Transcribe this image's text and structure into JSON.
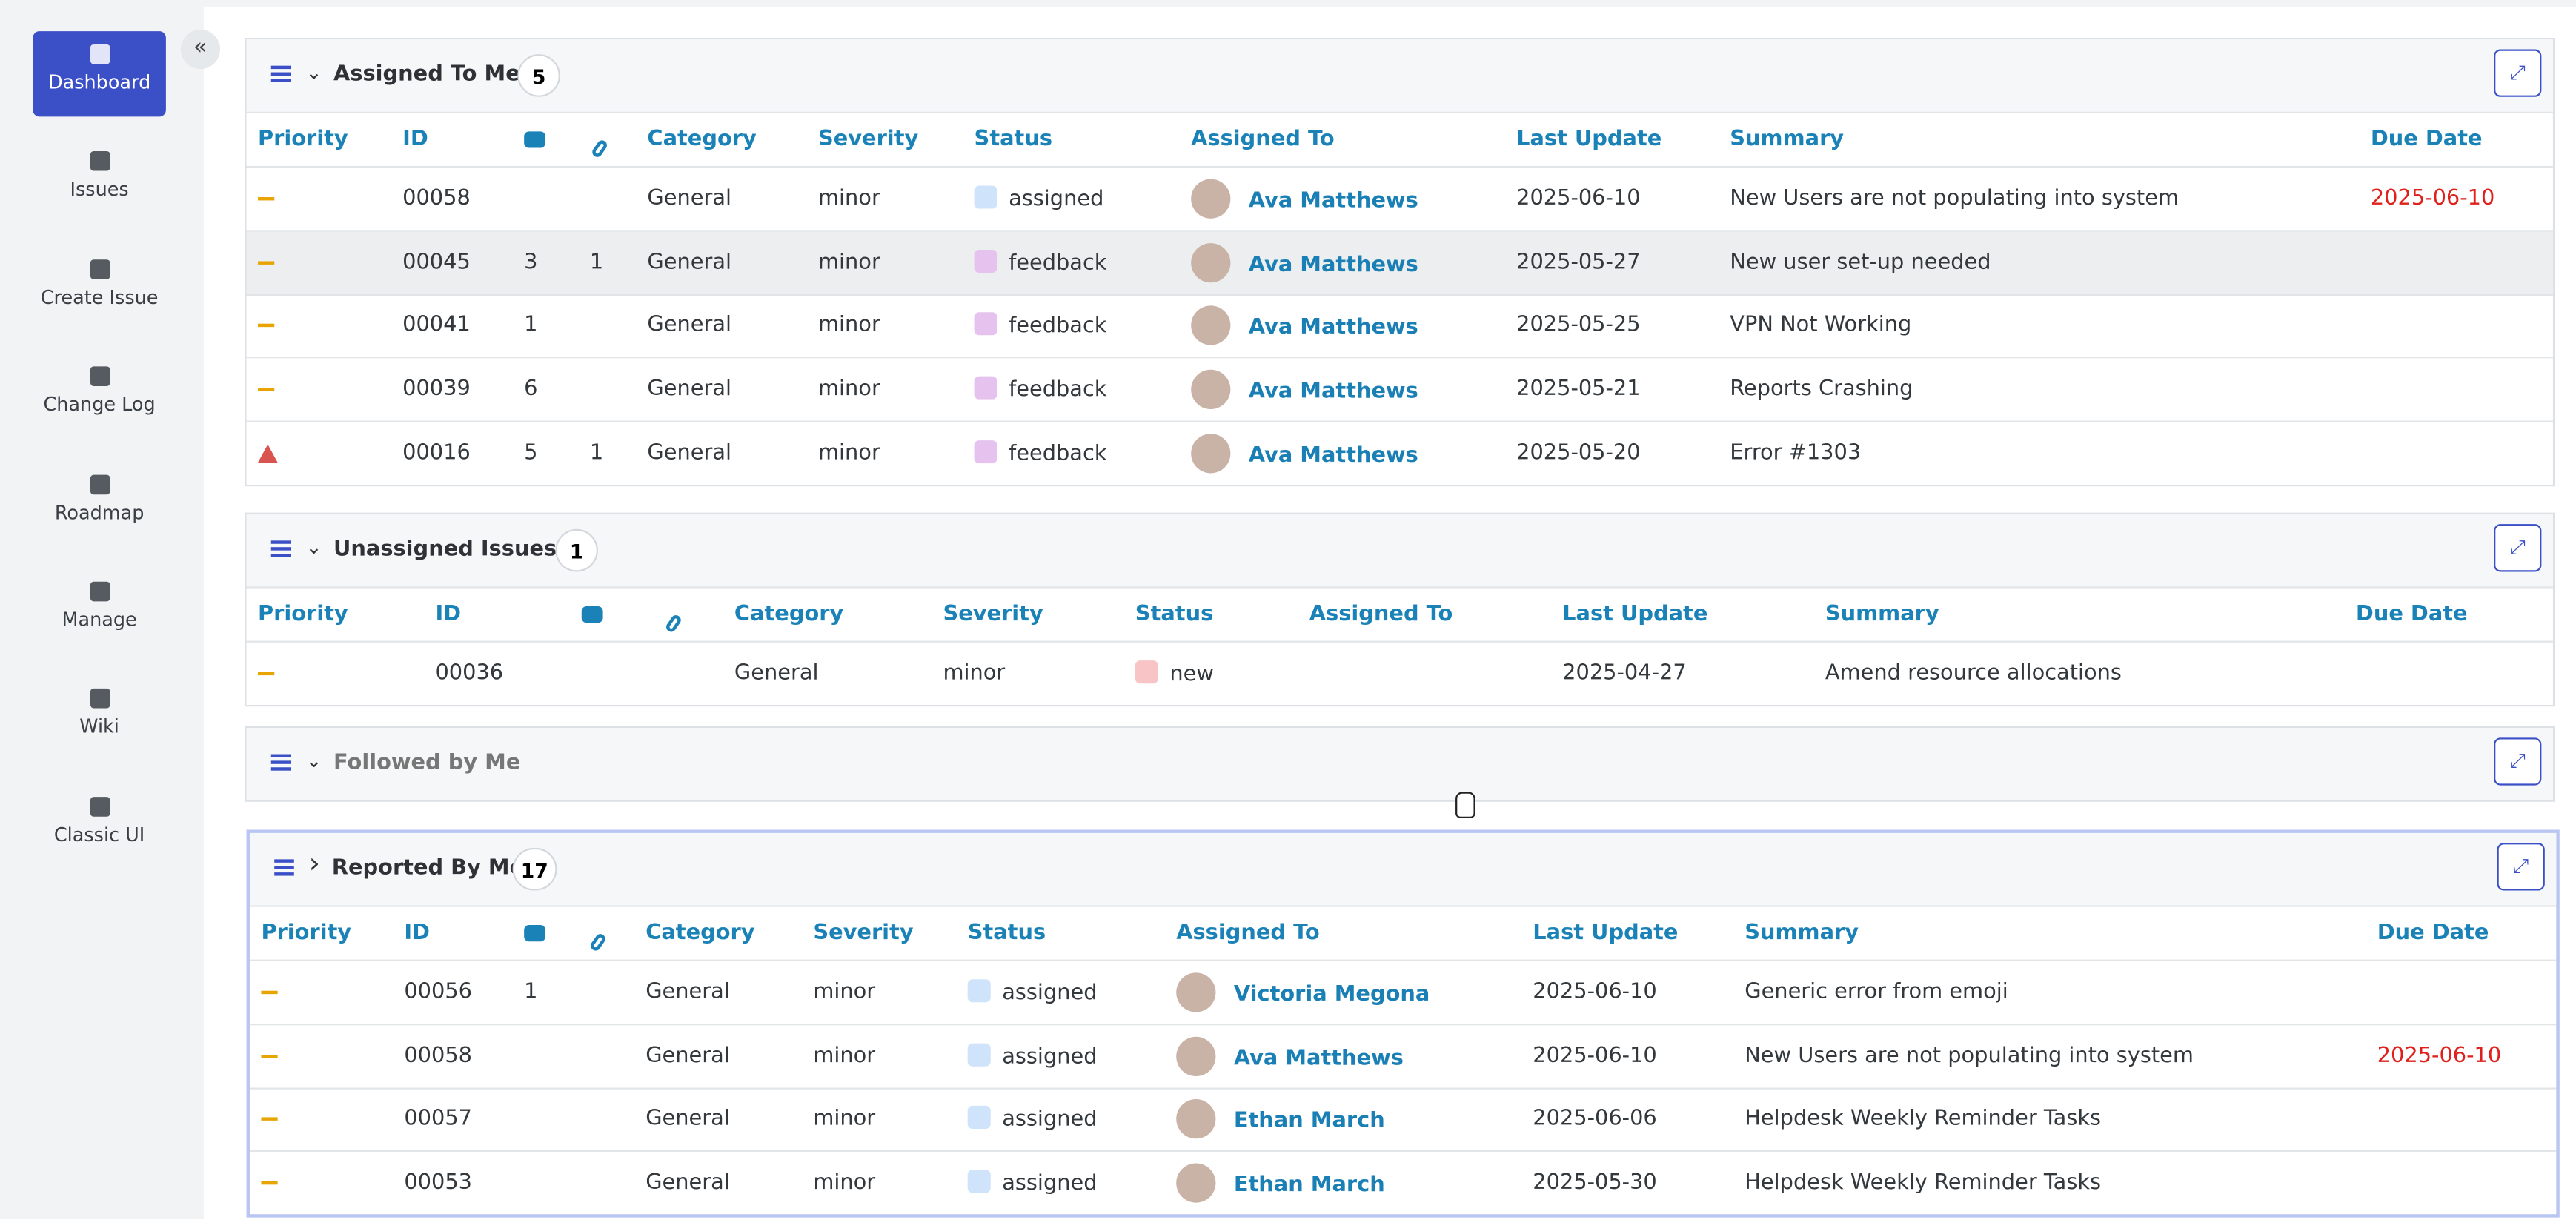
{
  "sidebar": [
    {
      "label": "Dashboard",
      "active": true
    },
    {
      "label": "Issues"
    },
    {
      "label": "Create Issue"
    },
    {
      "label": "Change Log"
    },
    {
      "label": "Roadmap"
    },
    {
      "label": "Manage"
    },
    {
      "label": "Wiki"
    },
    {
      "label": "Classic UI"
    }
  ],
  "sections": [
    {
      "title": "Assigned To Me",
      "count": 5,
      "expanded": true,
      "columns": [
        "Priority",
        "ID",
        "Category",
        "Severity",
        "Status",
        "Assigned To",
        "Last Update",
        "Summary",
        "Due Date"
      ],
      "rows": [
        {
          "id": "00058",
          "category": "General",
          "severity": "minor",
          "status": "assigned",
          "status_color": "#cfe3fb",
          "assigned": "Ava Matthews",
          "updated": "2025-06-10",
          "summary": "New Users are not populating into system",
          "due": "2025-06-10"
        },
        {
          "id": "00045",
          "notes": 3,
          "files": 1,
          "category": "General",
          "severity": "minor",
          "status": "feedback",
          "status_color": "#e6c3ee",
          "assigned": "Ava Matthews",
          "updated": "2025-05-27",
          "summary": "New user set-up needed",
          "highlight": true
        },
        {
          "id": "00041",
          "notes": 1,
          "category": "General",
          "severity": "minor",
          "status": "feedback",
          "status_color": "#e6c3ee",
          "assigned": "Ava Matthews",
          "updated": "2025-05-25",
          "summary": "VPN Not Working"
        },
        {
          "id": "00039",
          "notes": 6,
          "category": "General",
          "severity": "minor",
          "status": "feedback",
          "status_color": "#e6c3ee",
          "assigned": "Ava Matthews",
          "updated": "2025-05-21",
          "summary": "Reports Crashing"
        },
        {
          "id": "00016",
          "notes": 5,
          "files": 1,
          "urgent": true,
          "category": "General",
          "severity": "minor",
          "status": "feedback",
          "status_color": "#e6c3ee",
          "assigned": "Ava Matthews",
          "updated": "2025-05-20",
          "summary": "Error #1303"
        }
      ]
    },
    {
      "title": "Unassigned Issues",
      "count": 1,
      "expanded": true,
      "columns": [
        "Priority",
        "ID",
        "Category",
        "Severity",
        "Status",
        "Assigned To",
        "Last Update",
        "Summary",
        "Due Date"
      ],
      "rows": [
        {
          "id": "00036",
          "category": "General",
          "severity": "minor",
          "status": "new",
          "status_color": "#f8c4c6",
          "updated": "2025-04-27",
          "summary": "Amend resource allocations"
        }
      ]
    },
    {
      "title": "Followed by Me",
      "expanded": true,
      "muted": true
    },
    {
      "title": "Reported By Me",
      "count": 17,
      "expanded": false,
      "active": true,
      "columns": [
        "Priority",
        "ID",
        "Category",
        "Severity",
        "Status",
        "Assigned To",
        "Last Update",
        "Summary",
        "Due Date"
      ],
      "rows": [
        {
          "id": "00056",
          "notes": 1,
          "category": "General",
          "severity": "minor",
          "status": "assigned",
          "status_color": "#cfe3fb",
          "assigned": "Victoria Megona",
          "updated": "2025-06-10",
          "summary": "Generic error from emoji"
        },
        {
          "id": "00058",
          "category": "General",
          "severity": "minor",
          "status": "assigned",
          "status_color": "#cfe3fb",
          "assigned": "Ava Matthews",
          "updated": "2025-06-10",
          "summary": "New Users are not populating into system",
          "due": "2025-06-10"
        },
        {
          "id": "00057",
          "category": "General",
          "severity": "minor",
          "status": "assigned",
          "status_color": "#cfe3fb",
          "assigned": "Ethan March",
          "updated": "2025-06-06",
          "summary": "Helpdesk Weekly Reminder Tasks"
        },
        {
          "id": "00053",
          "category": "General",
          "severity": "minor",
          "status": "assigned",
          "status_color": "#cfe3fb",
          "assigned": "Ethan March",
          "updated": "2025-05-30",
          "summary": "Helpdesk Weekly Reminder Tasks"
        }
      ]
    }
  ]
}
